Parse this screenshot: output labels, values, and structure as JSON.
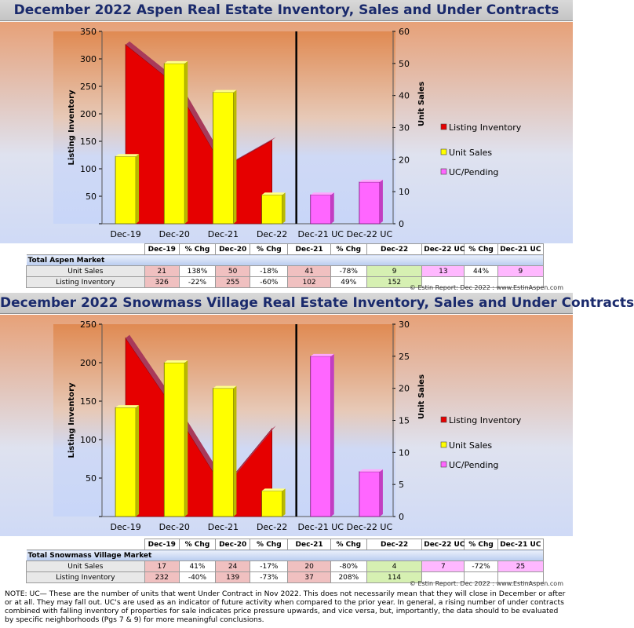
{
  "colors": {
    "inventory": "#e60000",
    "sales": "#ffff00",
    "uc": "#ff66ff",
    "divider": "#000000"
  },
  "charts": [
    {
      "id": "aspen",
      "title": "December 2022 Aspen Real Estate Inventory, Sales and Under Contracts",
      "y1label": "Listing Inventory",
      "y2label": "Unit Sales",
      "y1ticks": [
        "350",
        "300",
        "250",
        "200",
        "150",
        "100",
        "50",
        ""
      ],
      "y2ticks": [
        "60",
        "50",
        "40",
        "30",
        "20",
        "10",
        "0"
      ],
      "categories": [
        "Dec-19",
        "Dec-20",
        "Dec-21",
        "Dec-22",
        "Dec-21 UC",
        "Dec-22 UC"
      ],
      "legend": [
        "Listing Inventory",
        "Unit Sales",
        "UC/Pending"
      ],
      "table": {
        "headers": [
          "Dec-19",
          "% Chg",
          "Dec-20",
          "% Chg",
          "Dec-21",
          "% Chg",
          "Dec-22",
          "Dec-22 UC",
          "% Chg",
          "Dec-21 UC"
        ],
        "market": "Total Aspen Market",
        "rows": [
          {
            "label": "Unit Sales",
            "cells": [
              "21",
              "138%",
              "50",
              "-18%",
              "41",
              "-78%",
              "9",
              "13",
              "44%",
              "9"
            ]
          },
          {
            "label": "Listing Inventory",
            "cells": [
              "326",
              "-22%",
              "255",
              "-60%",
              "102",
              "49%",
              "152",
              "",
              "",
              ""
            ]
          }
        ]
      },
      "copyright": "© Estin Report: Dec 2022 : www.EstinAspen.com"
    },
    {
      "id": "snowmass",
      "title": "December 2022 Snowmass Village Real Estate Inventory, Sales and Under Contracts",
      "y1label": "Listing Inventory",
      "y2label": "Unit Sales",
      "y1ticks": [
        "250",
        "200",
        "150",
        "100",
        "50",
        ""
      ],
      "y2ticks": [
        "30",
        "25",
        "20",
        "15",
        "10",
        "5",
        "0"
      ],
      "categories": [
        "Dec-19",
        "Dec-20",
        "Dec-21",
        "Dec-22",
        "Dec-21 UC",
        "Dec-22 UC"
      ],
      "legend": [
        "Listing Inventory",
        "Unit Sales",
        "UC/Pending"
      ],
      "table": {
        "headers": [
          "Dec-19",
          "% Chg",
          "Dec-20",
          "% Chg",
          "Dec-21",
          "% Chg",
          "Dec-22",
          "Dec-22 UC",
          "% Chg",
          "Dec-21 UC"
        ],
        "market": "Total Snowmass Village Market",
        "rows": [
          {
            "label": "Unit Sales",
            "cells": [
              "17",
              "41%",
              "24",
              "-17%",
              "20",
              "-80%",
              "4",
              "7",
              "-72%",
              "25"
            ]
          },
          {
            "label": "Listing Inventory",
            "cells": [
              "232",
              "-40%",
              "139",
              "-73%",
              "37",
              "208%",
              "114",
              "",
              "",
              ""
            ]
          }
        ]
      },
      "copyright": "© Estin Report: Dec 2022 : www.EstinAspen.com"
    }
  ],
  "chart_data": [
    {
      "type": "bar",
      "title": "December 2022 Aspen Real Estate Inventory, Sales and Under Contracts",
      "categories": [
        "Dec-19",
        "Dec-20",
        "Dec-21",
        "Dec-22",
        "Dec-21 UC",
        "Dec-22 UC"
      ],
      "series": [
        {
          "name": "Listing Inventory",
          "axis": "left",
          "chart": "area",
          "values": [
            326,
            255,
            102,
            152,
            null,
            null
          ]
        },
        {
          "name": "Unit Sales",
          "axis": "right",
          "chart": "bar",
          "values": [
            21,
            50,
            41,
            9,
            null,
            null
          ]
        },
        {
          "name": "UC/Pending",
          "axis": "right",
          "chart": "bar",
          "values": [
            null,
            null,
            null,
            null,
            9,
            13
          ]
        }
      ],
      "ylabel": "Listing Inventory",
      "ylim": [
        0,
        350
      ],
      "y2label": "Unit Sales",
      "y2lim": [
        0,
        60
      ],
      "legend": "right"
    },
    {
      "type": "bar",
      "title": "December 2022 Snowmass Village Real Estate Inventory, Sales and Under Contracts",
      "categories": [
        "Dec-19",
        "Dec-20",
        "Dec-21",
        "Dec-22",
        "Dec-21 UC",
        "Dec-22 UC"
      ],
      "series": [
        {
          "name": "Listing Inventory",
          "axis": "left",
          "chart": "area",
          "values": [
            232,
            139,
            37,
            114,
            null,
            null
          ]
        },
        {
          "name": "Unit Sales",
          "axis": "right",
          "chart": "bar",
          "values": [
            17,
            24,
            20,
            4,
            null,
            null
          ]
        },
        {
          "name": "UC/Pending",
          "axis": "right",
          "chart": "bar",
          "values": [
            null,
            null,
            null,
            null,
            25,
            7
          ]
        }
      ],
      "ylabel": "Listing Inventory",
      "ylim": [
        0,
        250
      ],
      "y2label": "Unit Sales",
      "y2lim": [
        0,
        30
      ],
      "legend": "right"
    }
  ],
  "note": "NOTE: UC— These are the number of units that went Under Contract in Nov 2022. This does not necessarily mean that they will close in December or after or at all. They may fall out. UC's are used as an indicator of future activity when compared to the prior year. In general, a rising number of under contracts combined with falling inventory of properties for sale indicates price pressure upwards, and vice versa, but, importantly, the data should to be evaluated by specific neighborhoods (Pgs 7 & 9) for more meaningful conclusions."
}
